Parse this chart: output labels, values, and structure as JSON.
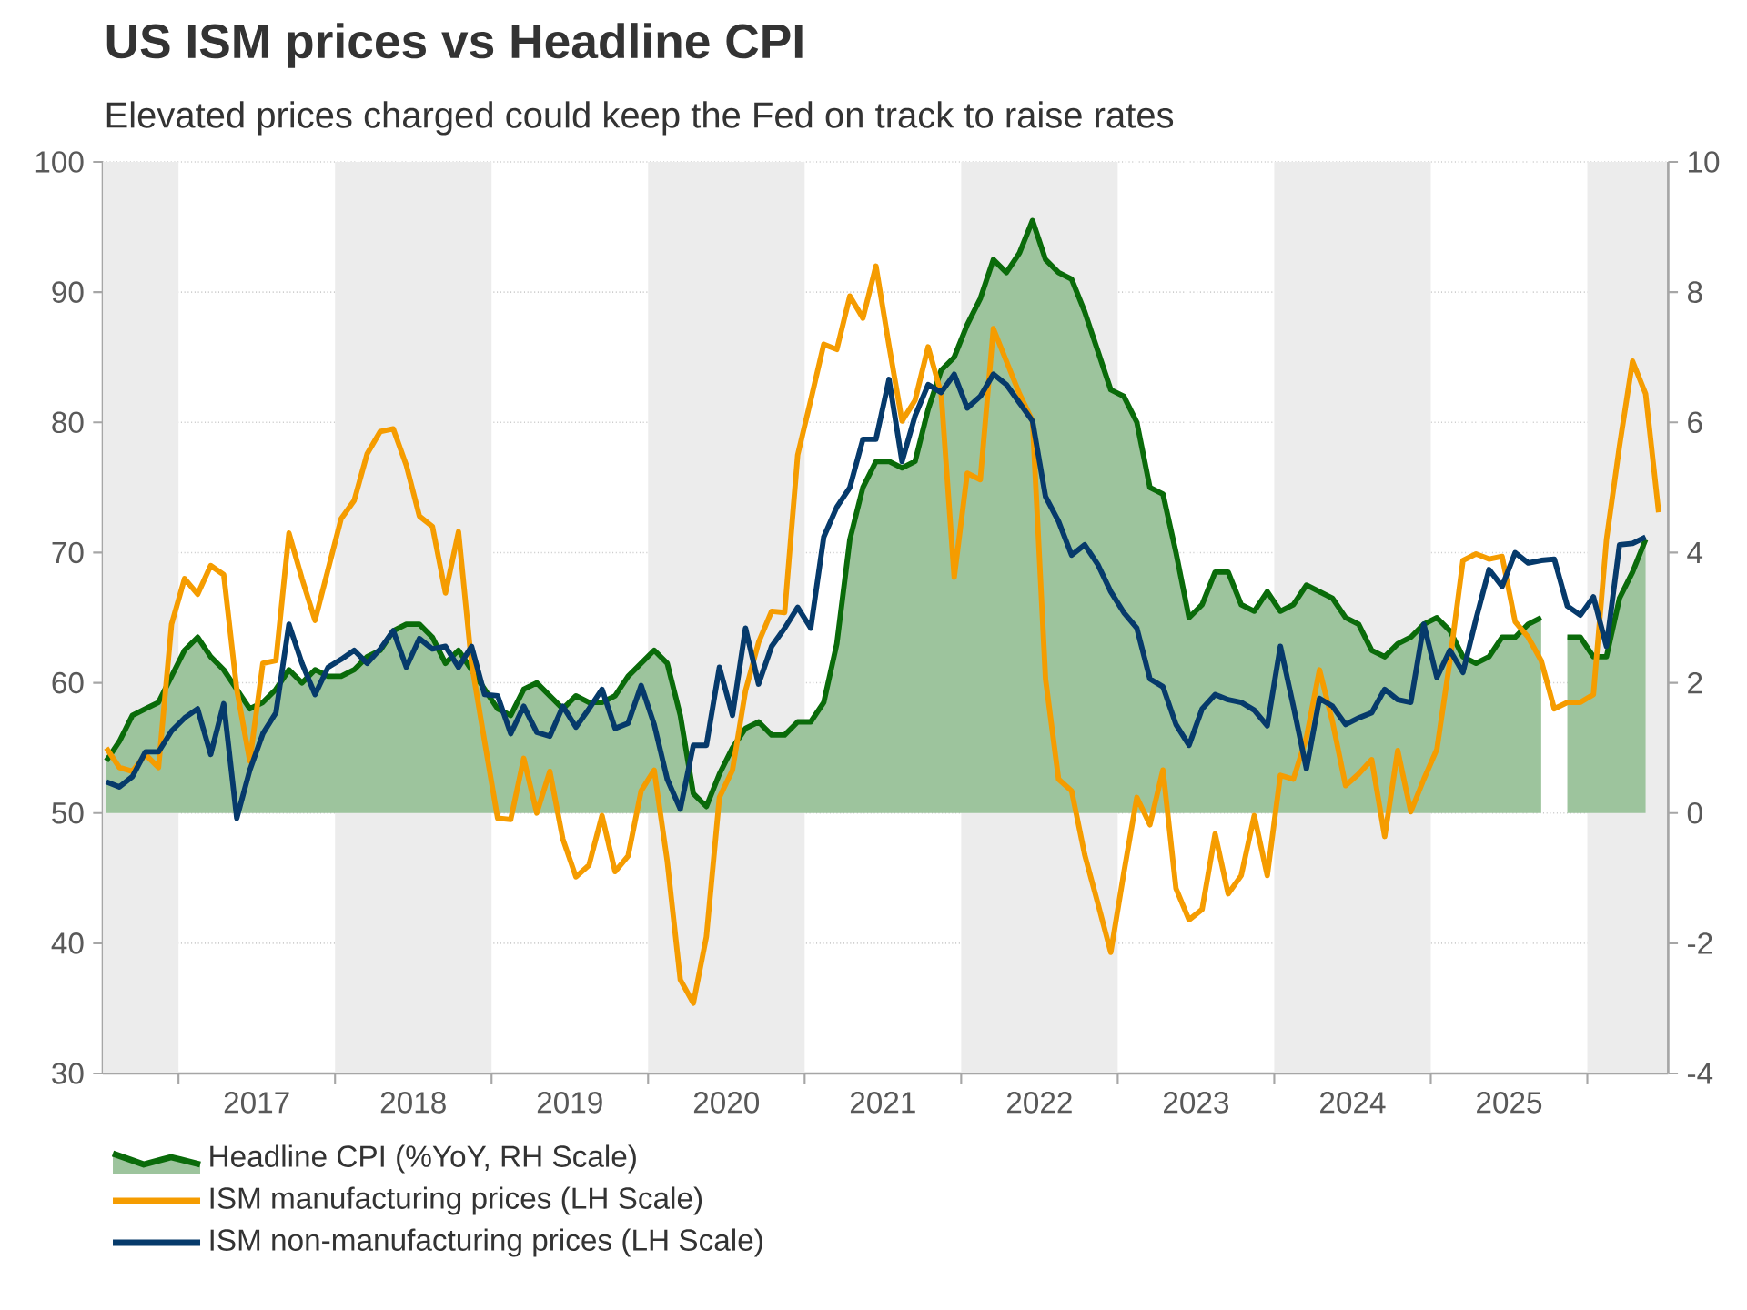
{
  "chart_data": {
    "type": "line",
    "title": "US ISM prices vs Headline CPI",
    "subtitle": "Elevated prices charged could keep the Fed on track to raise rates",
    "x": [
      "2016-07-15",
      "2016-08-15",
      "2016-09-15",
      "2016-10-15",
      "2016-11-15",
      "2016-12-15",
      "2017-01-15",
      "2017-02-15",
      "2017-03-15",
      "2017-04-15",
      "2017-05-15",
      "2017-06-15",
      "2017-07-15",
      "2017-08-15",
      "2017-09-15",
      "2017-10-15",
      "2017-11-15",
      "2017-12-15",
      "2018-01-15",
      "2018-02-15",
      "2018-03-15",
      "2018-04-15",
      "2018-05-15",
      "2018-06-15",
      "2018-07-15",
      "2018-08-15",
      "2018-09-15",
      "2018-10-15",
      "2018-11-15",
      "2018-12-15",
      "2019-01-15",
      "2019-02-15",
      "2019-03-15",
      "2019-04-15",
      "2019-05-15",
      "2019-06-15",
      "2019-07-15",
      "2019-08-15",
      "2019-09-15",
      "2019-10-15",
      "2019-11-15",
      "2019-12-15",
      "2020-01-15",
      "2020-02-15",
      "2020-03-15",
      "2020-04-15",
      "2020-05-15",
      "2020-06-15",
      "2020-07-15",
      "2020-08-15",
      "2020-09-15",
      "2020-10-15",
      "2020-11-15",
      "2020-12-15",
      "2021-01-15",
      "2021-02-15",
      "2021-03-15",
      "2021-04-15",
      "2021-05-15",
      "2021-06-15",
      "2021-07-15",
      "2021-08-15",
      "2021-09-15",
      "2021-10-15",
      "2021-11-15",
      "2021-12-15",
      "2022-01-15",
      "2022-02-15",
      "2022-03-15",
      "2022-04-15",
      "2022-05-15",
      "2022-06-15",
      "2022-07-15",
      "2022-08-15",
      "2022-09-15",
      "2022-10-15",
      "2022-11-15",
      "2022-12-15",
      "2023-01-15",
      "2023-02-15",
      "2023-03-15",
      "2023-04-15",
      "2023-05-15",
      "2023-06-15",
      "2023-07-15",
      "2023-08-15",
      "2023-09-15",
      "2023-10-15",
      "2023-11-15",
      "2023-12-15",
      "2024-01-15",
      "2024-02-15",
      "2024-03-15",
      "2024-04-15",
      "2024-05-15",
      "2024-06-15",
      "2024-07-15",
      "2024-08-15",
      "2024-09-15",
      "2024-10-15",
      "2024-11-15",
      "2024-12-15",
      "2025-01-15",
      "2025-02-15",
      "2025-03-15",
      "2025-04-15",
      "2025-05-15",
      "2025-06-15",
      "2025-07-15",
      "2025-08-15",
      "2025-09-15",
      "2025-10-15",
      "2025-11-15",
      "2025-12-15",
      "2026-01-15",
      "2026-02-15",
      "2026-03-15",
      "2026-04-15",
      "2026-05-15",
      "2026-06-15"
    ],
    "xlim": [
      "2016-07-07",
      "2026-07-07"
    ],
    "xticks": [
      {
        "value": "2017-01-01",
        "label": null
      },
      {
        "value": "2017-07-01",
        "label": "2017"
      },
      {
        "value": "2018-01-01",
        "label": null
      },
      {
        "value": "2018-07-01",
        "label": "2018"
      },
      {
        "value": "2019-01-01",
        "label": null
      },
      {
        "value": "2019-07-01",
        "label": "2019"
      },
      {
        "value": "2020-01-01",
        "label": null
      },
      {
        "value": "2020-07-01",
        "label": "2020"
      },
      {
        "value": "2021-01-01",
        "label": null
      },
      {
        "value": "2021-07-01",
        "label": "2021"
      },
      {
        "value": "2022-01-01",
        "label": null
      },
      {
        "value": "2022-07-01",
        "label": "2022"
      },
      {
        "value": "2023-01-01",
        "label": null
      },
      {
        "value": "2023-07-01",
        "label": "2023"
      },
      {
        "value": "2024-01-01",
        "label": null
      },
      {
        "value": "2024-07-01",
        "label": "2024"
      },
      {
        "value": "2025-01-01",
        "label": null
      },
      {
        "value": "2025-07-01",
        "label": "2025"
      },
      {
        "value": "2026-01-01",
        "label": null
      }
    ],
    "ylim": [
      30,
      100
    ],
    "yticks": [
      30,
      40,
      50,
      60,
      70,
      80,
      90,
      100
    ],
    "y2lim": [
      -4,
      10
    ],
    "y2ticks": [
      -4,
      -2,
      0,
      2,
      4,
      6,
      8,
      10
    ],
    "grid": "y",
    "legend": "bottom left",
    "bands": [
      {
        "axis": "x",
        "from": "2016-07-07",
        "to": "2017-01-01",
        "color": "#ececec"
      },
      {
        "axis": "x",
        "from": "2018-01-01",
        "to": "2019-01-01",
        "color": "#ececec"
      },
      {
        "axis": "x",
        "from": "2020-01-01",
        "to": "2021-01-01",
        "color": "#ececec"
      },
      {
        "axis": "x",
        "from": "2022-01-01",
        "to": "2023-01-01",
        "color": "#ececec"
      },
      {
        "axis": "x",
        "from": "2024-01-01",
        "to": "2025-01-01",
        "color": "#ececec"
      },
      {
        "axis": "x",
        "from": "2026-01-01",
        "to": "2026-07-07",
        "color": "#ececec"
      }
    ],
    "series": [
      {
        "name": "Headline CPI (%YoY, RH Scale)",
        "type": "area",
        "axis": "y2",
        "color": "#0a6b0a",
        "values": [
          0.8,
          1.1,
          1.5,
          1.6,
          1.7,
          2.1,
          2.5,
          2.7,
          2.4,
          2.2,
          1.9,
          1.6,
          1.7,
          1.9,
          2.2,
          2.0,
          2.2,
          2.1,
          2.1,
          2.2,
          2.4,
          2.5,
          2.8,
          2.9,
          2.9,
          2.7,
          2.3,
          2.5,
          2.2,
          1.9,
          1.6,
          1.5,
          1.9,
          2.0,
          1.8,
          1.6,
          1.8,
          1.7,
          1.7,
          1.8,
          2.1,
          2.3,
          2.5,
          2.3,
          1.5,
          0.3,
          0.1,
          0.6,
          1.0,
          1.3,
          1.4,
          1.2,
          1.2,
          1.4,
          1.4,
          1.7,
          2.6,
          4.2,
          5.0,
          5.4,
          5.4,
          5.3,
          5.4,
          6.2,
          6.8,
          7.0,
          7.5,
          7.9,
          8.5,
          8.3,
          8.6,
          9.1,
          8.5,
          8.3,
          8.2,
          7.7,
          7.1,
          6.5,
          6.4,
          6.0,
          5.0,
          4.9,
          4.0,
          3.0,
          3.2,
          3.7,
          3.7,
          3.2,
          3.1,
          3.4,
          3.1,
          3.2,
          3.5,
          3.4,
          3.3,
          3.0,
          2.9,
          2.5,
          2.4,
          2.6,
          2.7,
          2.9,
          3.0,
          2.8,
          2.4,
          2.3,
          2.4,
          2.7,
          2.7,
          2.9,
          3.0,
          null,
          2.7,
          2.7,
          2.4,
          2.4,
          3.3,
          3.7,
          4.2,
          null
        ]
      },
      {
        "name": "ISM manufacturing prices (LH Scale)",
        "axis": "y",
        "color": "#f59c00",
        "values": [
          55,
          53.5,
          53.2,
          54.5,
          53.5,
          64.5,
          68,
          66.8,
          69,
          68.3,
          59.5,
          54,
          61.5,
          61.7,
          71.5,
          68,
          64.8,
          68.7,
          72.6,
          74,
          77.6,
          79.3,
          79.5,
          76.7,
          72.8,
          72,
          66.9,
          71.6,
          61.5,
          55.5,
          49.6,
          49.5,
          54.2,
          50,
          53.2,
          48,
          45.1,
          46,
          49.8,
          45.5,
          46.7,
          51.7,
          53.3,
          46.3,
          37.2,
          35.4,
          40.5,
          51.2,
          53.3,
          59.4,
          63.1,
          65.5,
          65.4,
          77.5,
          81.7,
          86,
          85.6,
          89.7,
          88,
          92,
          85.9,
          80.1,
          81.7,
          85.8,
          82.2,
          68.1,
          76.1,
          75.6,
          87.2,
          84.7,
          82.2,
          80.1,
          60.3,
          52.6,
          51.7,
          46.8,
          43.1,
          39.3,
          45.4,
          51.2,
          49.1,
          53.3,
          44.2,
          41.8,
          42.6,
          48.4,
          43.8,
          45.2,
          49.8,
          45.2,
          52.9,
          52.6,
          55.8,
          61,
          57,
          52.1,
          53,
          54.1,
          48.2,
          54.8,
          50.1,
          52.6,
          54.9,
          61.7,
          69.4,
          69.9,
          69.5,
          69.7,
          64.7,
          63.5,
          61.7,
          58,
          58.5,
          58.5,
          59.1,
          71,
          78.2,
          84.7,
          82.2,
          73.1
        ]
      },
      {
        "name": "ISM non-manufacturing prices (LH Scale)",
        "axis": "y",
        "color": "#063a6b",
        "values": [
          52.4,
          52,
          52.8,
          54.7,
          54.7,
          56.3,
          57.3,
          58,
          54.5,
          58.4,
          49.6,
          53.3,
          56.1,
          57.7,
          64.5,
          61.5,
          59.1,
          61.2,
          61.8,
          62.5,
          61.5,
          62.6,
          64,
          61.2,
          63.4,
          62.6,
          62.8,
          61.2,
          62.8,
          59.1,
          59,
          56.1,
          58.2,
          56.2,
          55.9,
          58.2,
          56.6,
          58,
          59.5,
          56.5,
          56.9,
          59.8,
          56.8,
          52.6,
          50.3,
          55.2,
          55.2,
          61.2,
          57.5,
          64.2,
          59.9,
          62.8,
          64.2,
          65.8,
          64.2,
          71.2,
          73.5,
          75,
          78.7,
          78.7,
          83.3,
          77,
          80.5,
          82.9,
          82.3,
          83.7,
          81.1,
          82,
          83.7,
          82.9,
          81.5,
          80.1,
          74.3,
          72.4,
          69.8,
          70.6,
          69.1,
          67,
          65.4,
          64.2,
          60.3,
          59.7,
          56.8,
          55.2,
          58,
          59.1,
          58.7,
          58.5,
          57.9,
          56.7,
          62.8,
          58.2,
          53.4,
          58.8,
          58.2,
          56.8,
          57.3,
          57.7,
          59.5,
          58.7,
          58.5,
          64.5,
          60.4,
          62.5,
          60.8,
          64.9,
          68.7,
          67.4,
          70,
          69.2,
          69.4,
          69.5,
          65.9,
          65.2,
          66.6,
          62.8,
          70.6,
          70.7,
          71.2,
          null
        ]
      }
    ]
  }
}
